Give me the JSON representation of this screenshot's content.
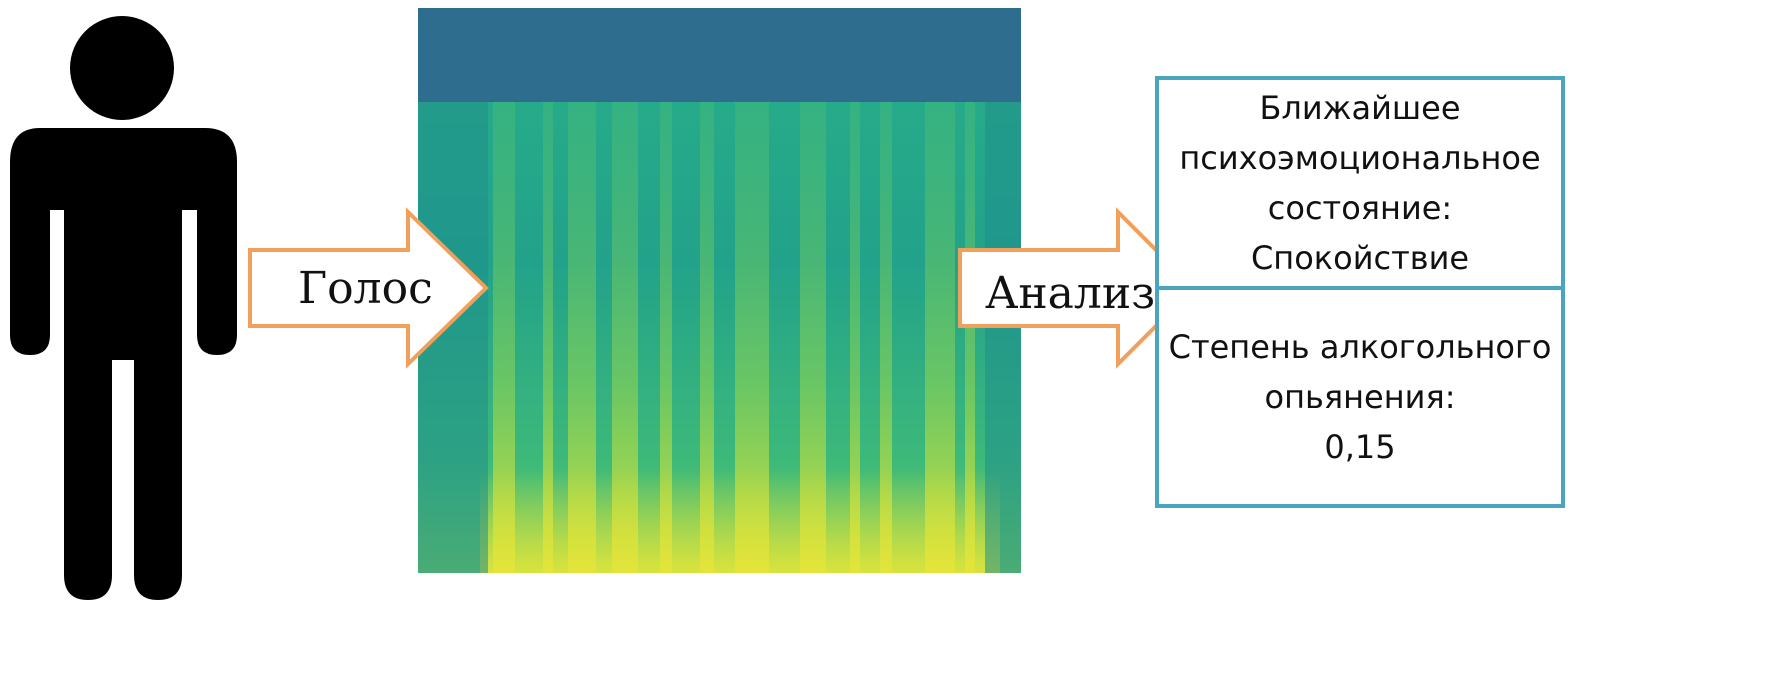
{
  "input_label": "Голос",
  "analysis_label": "Анализ",
  "state_box": {
    "line1": "Ближайшее",
    "line2": "психоэмоциональное",
    "line3": "состояние:",
    "value": "Спокойствие"
  },
  "alcohol_box": {
    "line1": "Степень алкогольного",
    "line2": "опьянения:",
    "value": "0,15"
  },
  "colors": {
    "arrow_stroke": "#f0a05a",
    "box_border": "#4aa6c0",
    "figure": "#000000",
    "spectrogram_low": "#2e6d8e",
    "spectrogram_high": "#e8e43a"
  }
}
